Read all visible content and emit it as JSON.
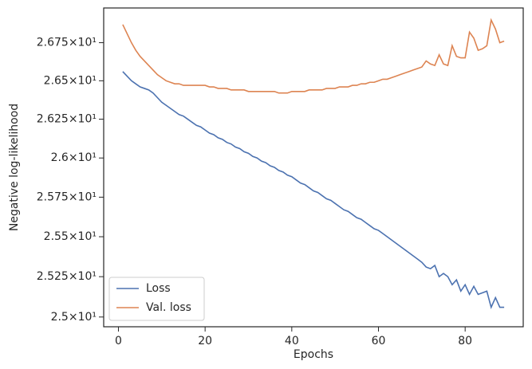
{
  "chart_data": {
    "type": "line",
    "x_label": "Epochs",
    "y_label": "Negative log-likelihood",
    "x": [
      1,
      2,
      3,
      4,
      5,
      6,
      7,
      8,
      9,
      10,
      11,
      12,
      13,
      14,
      15,
      16,
      17,
      18,
      19,
      20,
      21,
      22,
      23,
      24,
      25,
      26,
      27,
      28,
      29,
      30,
      31,
      32,
      33,
      34,
      35,
      36,
      37,
      38,
      39,
      40,
      41,
      42,
      43,
      44,
      45,
      46,
      47,
      48,
      49,
      50,
      51,
      52,
      53,
      54,
      55,
      56,
      57,
      58,
      59,
      60,
      61,
      62,
      63,
      64,
      65,
      66,
      67,
      68,
      69,
      70,
      71,
      72,
      73,
      74,
      75,
      76,
      77,
      78,
      79,
      80,
      81,
      82,
      83,
      84,
      85,
      86,
      87,
      88,
      89
    ],
    "series": [
      {
        "name": "Loss",
        "color": "#4c72b0",
        "values": [
          26.56,
          26.53,
          26.5,
          26.48,
          26.46,
          26.45,
          26.44,
          26.42,
          26.39,
          26.36,
          26.34,
          26.32,
          26.3,
          26.28,
          26.27,
          26.25,
          26.23,
          26.21,
          26.2,
          26.18,
          26.16,
          26.15,
          26.13,
          26.12,
          26.1,
          26.09,
          26.07,
          26.06,
          26.04,
          26.03,
          26.01,
          26.0,
          25.98,
          25.97,
          25.95,
          25.94,
          25.92,
          25.91,
          25.89,
          25.88,
          25.86,
          25.84,
          25.83,
          25.81,
          25.79,
          25.78,
          25.76,
          25.74,
          25.73,
          25.71,
          25.69,
          25.67,
          25.66,
          25.64,
          25.62,
          25.61,
          25.59,
          25.57,
          25.55,
          25.54,
          25.52,
          25.5,
          25.48,
          25.46,
          25.44,
          25.42,
          25.4,
          25.38,
          25.36,
          25.34,
          25.31,
          25.3,
          25.32,
          25.25,
          25.27,
          25.25,
          25.2,
          25.23,
          25.16,
          25.2,
          25.14,
          25.19,
          25.14,
          25.15,
          25.16,
          25.06,
          25.12,
          25.06,
          25.06
        ]
      },
      {
        "name": "Val. loss",
        "color": "#dd8452",
        "values": [
          26.87,
          26.81,
          26.75,
          26.7,
          26.66,
          26.63,
          26.6,
          26.57,
          26.54,
          26.52,
          26.5,
          26.49,
          26.48,
          26.48,
          26.47,
          26.47,
          26.47,
          26.47,
          26.47,
          26.47,
          26.46,
          26.46,
          26.45,
          26.45,
          26.45,
          26.44,
          26.44,
          26.44,
          26.44,
          26.43,
          26.43,
          26.43,
          26.43,
          26.43,
          26.43,
          26.43,
          26.42,
          26.42,
          26.42,
          26.43,
          26.43,
          26.43,
          26.43,
          26.44,
          26.44,
          26.44,
          26.44,
          26.45,
          26.45,
          26.45,
          26.46,
          26.46,
          26.46,
          26.47,
          26.47,
          26.48,
          26.48,
          26.49,
          26.49,
          26.5,
          26.51,
          26.51,
          26.52,
          26.53,
          26.54,
          26.55,
          26.56,
          26.57,
          26.58,
          26.59,
          26.63,
          26.61,
          26.6,
          26.67,
          26.61,
          26.6,
          26.73,
          26.66,
          26.65,
          26.65,
          26.82,
          26.78,
          26.7,
          26.71,
          26.73,
          26.9,
          26.84,
          26.75,
          26.76
        ]
      }
    ],
    "xlim": [
      -3.4,
      93.4
    ],
    "xticks": [
      0,
      20,
      40,
      60,
      80
    ],
    "ylim": [
      24.94,
      26.98
    ],
    "ylog": true,
    "yticks": [
      {
        "value": 25,
        "label": "2.5×10¹"
      },
      {
        "value": 25.25,
        "label": "2.525×10¹"
      },
      {
        "value": 25.5,
        "label": "2.55×10¹"
      },
      {
        "value": 25.75,
        "label": "2.575×10¹"
      },
      {
        "value": 26,
        "label": "2.6×10¹"
      },
      {
        "value": 26.25,
        "label": "2.625×10¹"
      },
      {
        "value": 26.5,
        "label": "2.65×10¹"
      },
      {
        "value": 26.75,
        "label": "2.675×10¹"
      }
    ],
    "grid": false,
    "legend": "lower left"
  }
}
